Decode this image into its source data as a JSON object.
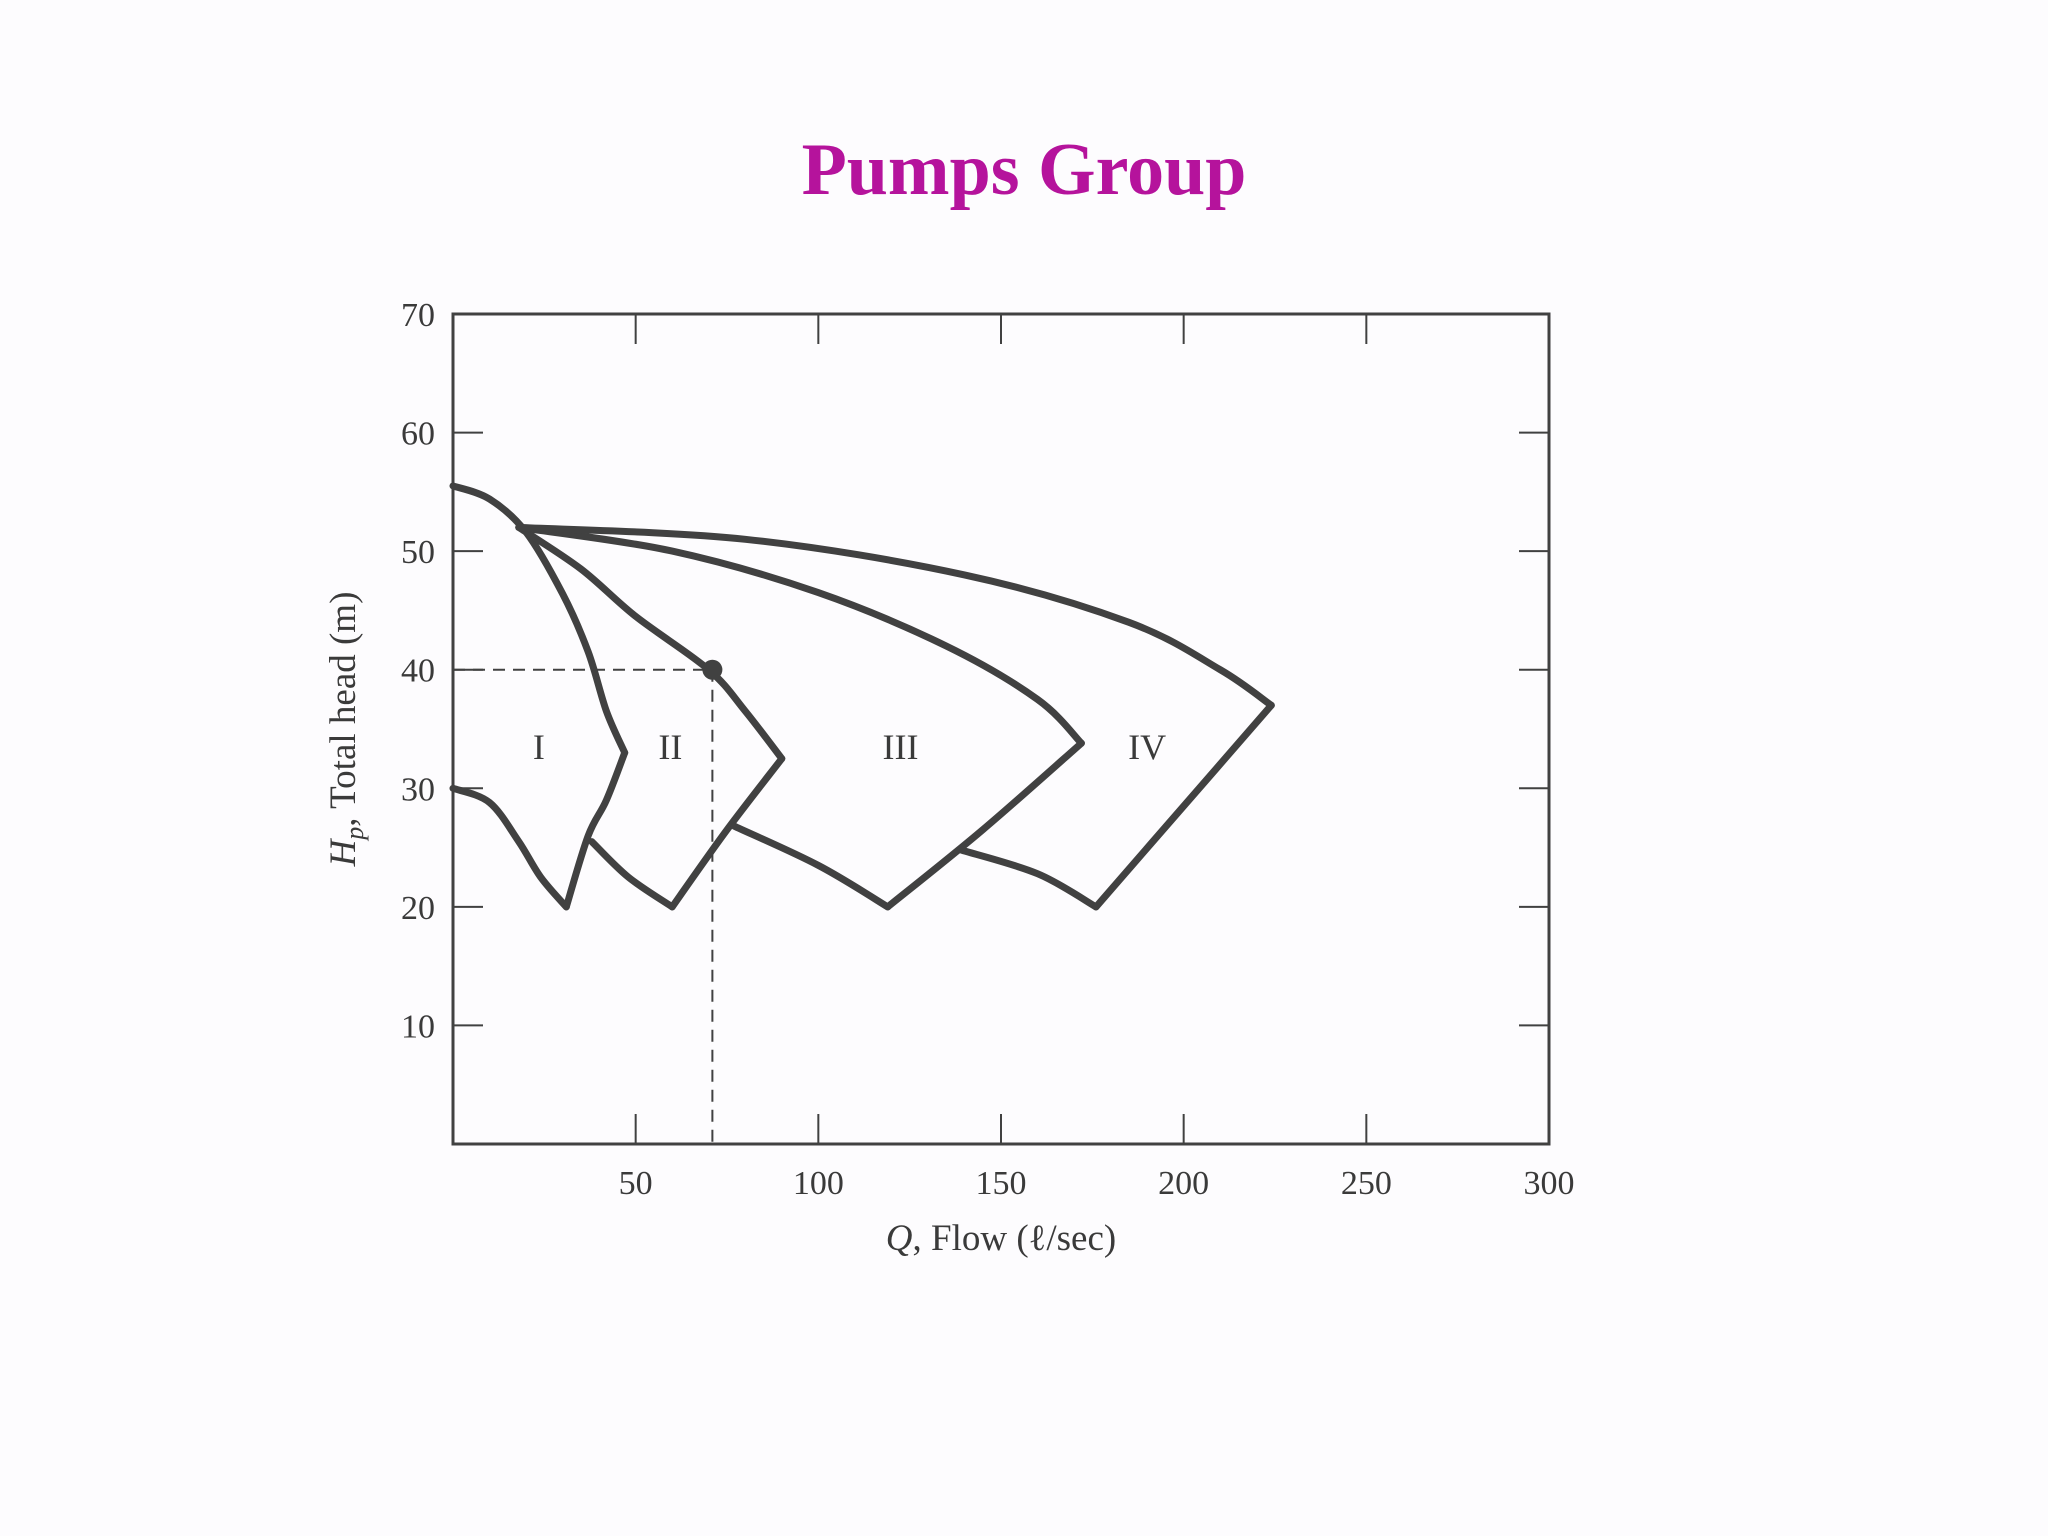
{
  "slide": {
    "title": "Pumps Group",
    "title_color": "#b5139c"
  },
  "chart_data": {
    "type": "line",
    "title": "",
    "xlabel_italic": "Q",
    "xlabel_rest": ", Flow (ℓ/sec)",
    "ylabel_italic": "H",
    "ylabel_sub": "p",
    "ylabel_rest": ", Total head (m)",
    "xlim": [
      0,
      300
    ],
    "ylim": [
      0,
      70
    ],
    "x_ticks": [
      50,
      100,
      150,
      200,
      250,
      300
    ],
    "y_ticks": [
      10,
      20,
      30,
      40,
      50,
      60,
      70
    ],
    "grid": false,
    "line_color": "#414141",
    "series": [
      {
        "name": "",
        "points": [
          [
            0,
            55.5
          ],
          [
            10,
            54.4
          ],
          [
            20,
            51.6
          ],
          [
            30,
            46.4
          ],
          [
            37,
            41.5
          ],
          [
            42,
            36.5
          ],
          [
            47,
            33
          ]
        ]
      },
      {
        "name": "",
        "points": [
          [
            18,
            52
          ],
          [
            35,
            48.5
          ],
          [
            50,
            44.5
          ],
          [
            70,
            40
          ],
          [
            80,
            36.5
          ],
          [
            90,
            32.5
          ]
        ]
      },
      {
        "name": "",
        "points": [
          [
            18,
            52
          ],
          [
            60,
            50
          ],
          [
            100,
            46.5
          ],
          [
            135,
            42
          ],
          [
            160,
            37.5
          ],
          [
            172,
            33.8
          ]
        ]
      },
      {
        "name": "",
        "points": [
          [
            18,
            52
          ],
          [
            80,
            51
          ],
          [
            140,
            48
          ],
          [
            185,
            44
          ],
          [
            210,
            40
          ],
          [
            224,
            37
          ]
        ]
      },
      {
        "name": "",
        "points": [
          [
            0,
            30
          ],
          [
            10,
            28.8
          ],
          [
            18,
            25.5
          ],
          [
            24,
            22.5
          ],
          [
            31,
            20
          ]
        ]
      },
      {
        "name": "",
        "points": [
          [
            31,
            20
          ],
          [
            37,
            26
          ],
          [
            42,
            29
          ],
          [
            47,
            33
          ]
        ]
      },
      {
        "name": "",
        "points": [
          [
            38,
            25.5
          ],
          [
            48,
            22.5
          ],
          [
            60,
            20
          ]
        ]
      },
      {
        "name": "",
        "points": [
          [
            60,
            20
          ],
          [
            75,
            26.5
          ],
          [
            90,
            32.5
          ]
        ]
      },
      {
        "name": "",
        "points": [
          [
            77,
            26.8
          ],
          [
            100,
            23.5
          ],
          [
            119,
            20
          ]
        ]
      },
      {
        "name": "",
        "points": [
          [
            119,
            20
          ],
          [
            145,
            26.5
          ],
          [
            172,
            33.8
          ]
        ]
      },
      {
        "name": "",
        "points": [
          [
            139,
            24.8
          ],
          [
            160,
            22.8
          ],
          [
            176,
            20
          ]
        ]
      },
      {
        "name": "",
        "points": [
          [
            176,
            20
          ],
          [
            200,
            28.5
          ],
          [
            224,
            37
          ]
        ]
      }
    ],
    "operating_point": {
      "x": 71,
      "y": 40
    },
    "region_labels": [
      {
        "text": "I",
        "x": 23.5,
        "y": 33.5
      },
      {
        "text": "II",
        "x": 59.5,
        "y": 33.5
      },
      {
        "text": "III",
        "x": 122.5,
        "y": 33.5
      },
      {
        "text": "IV",
        "x": 190,
        "y": 33.5
      }
    ]
  }
}
